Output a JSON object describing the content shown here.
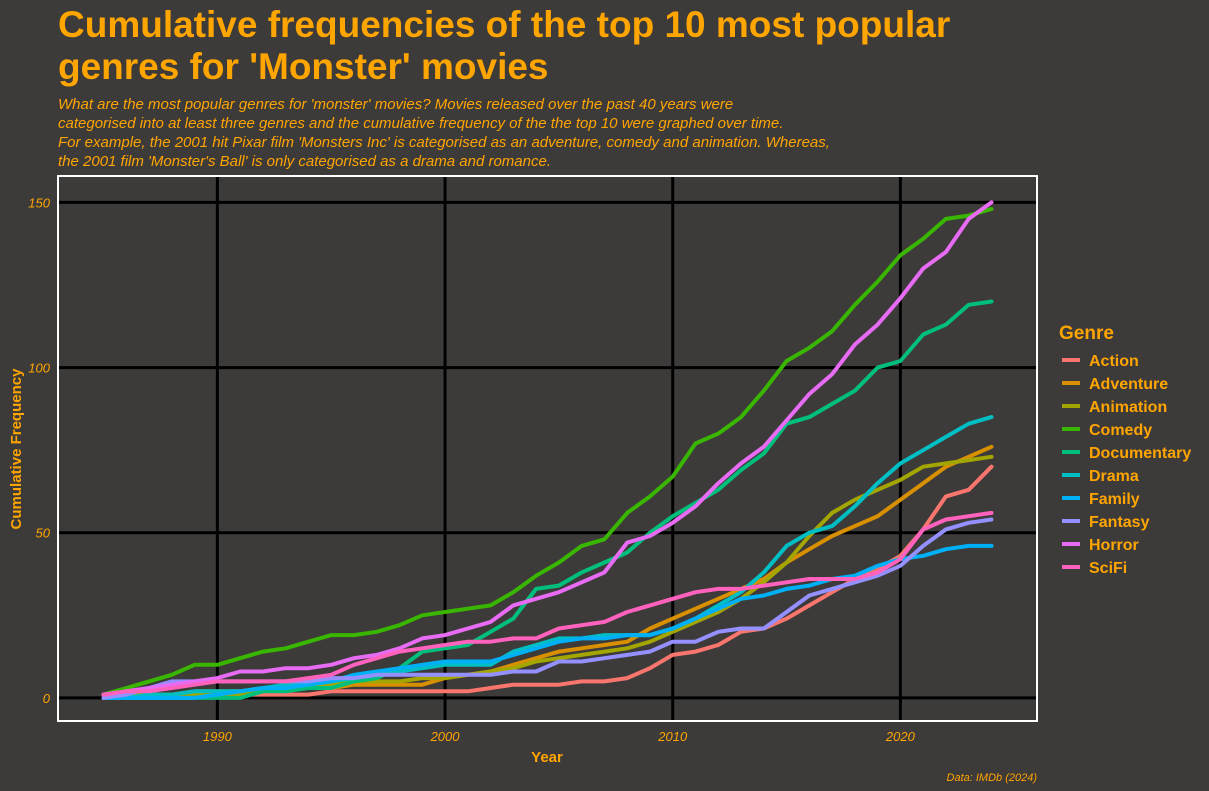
{
  "header": {
    "title_line1": "Cumulative frequencies of the top 10 most popular",
    "title_line2": "genres for 'Monster' movies",
    "subtitle_lines": [
      "What are the most popular genres for 'monster' movies? Movies released over the past 40 years were",
      "categorised into at least three genres and the cumulative frequency of the the top 10 were graphed over time.",
      "For example, the 2001 hit Pixar film 'Monsters Inc' is categorised as an adventure, comedy and animation. Whereas,",
      "the 2001 film 'Monster's Ball' is only categorised as a drama and romance."
    ]
  },
  "caption": "Data: IMDb (2024)",
  "colors": {
    "background": "#3d3a3a",
    "text": "#ffa500",
    "grid": "#000000",
    "panel_border": "#ffffff"
  },
  "chart_data": {
    "type": "line",
    "title": "Cumulative frequencies of the top 10 most popular genres for 'Monster' movies",
    "xlabel": "Year",
    "ylabel": "Cumulative Frequency",
    "xlim": [
      1983,
      2026
    ],
    "ylim": [
      -7,
      158
    ],
    "x_ticks": [
      1990,
      2000,
      2010,
      2020
    ],
    "y_ticks": [
      0,
      50,
      100,
      150
    ],
    "grid": true,
    "legend_title": "Genre",
    "legend_position": "right",
    "x": [
      1985,
      1986,
      1987,
      1988,
      1989,
      1990,
      1991,
      1992,
      1993,
      1994,
      1995,
      1996,
      1997,
      1998,
      1999,
      2000,
      2001,
      2002,
      2003,
      2004,
      2005,
      2006,
      2007,
      2008,
      2009,
      2010,
      2011,
      2012,
      2013,
      2014,
      2015,
      2016,
      2017,
      2018,
      2019,
      2020,
      2021,
      2022,
      2023,
      2024
    ],
    "series": [
      {
        "name": "Action",
        "color": "#f8766d",
        "values": [
          1,
          1,
          1,
          1,
          1,
          1,
          1,
          1,
          1,
          1,
          2,
          2,
          2,
          2,
          2,
          2,
          2,
          3,
          4,
          4,
          4,
          5,
          5,
          6,
          9,
          13,
          14,
          16,
          20,
          21,
          24,
          28,
          32,
          36,
          39,
          43,
          51,
          61,
          63,
          70
        ]
      },
      {
        "name": "Adventure",
        "color": "#d89000",
        "values": [
          0,
          1,
          1,
          1,
          2,
          2,
          2,
          3,
          3,
          3,
          3,
          4,
          4,
          4,
          4,
          6,
          7,
          8,
          10,
          12,
          14,
          15,
          16,
          17,
          21,
          24,
          27,
          30,
          33,
          36,
          41,
          45,
          49,
          52,
          55,
          60,
          65,
          70,
          73,
          76
        ]
      },
      {
        "name": "Animation",
        "color": "#a3a500",
        "values": [
          0,
          1,
          1,
          1,
          1,
          1,
          1,
          2,
          3,
          4,
          4,
          5,
          5,
          5,
          6,
          6,
          7,
          8,
          9,
          11,
          12,
          13,
          14,
          15,
          17,
          20,
          23,
          26,
          30,
          35,
          41,
          49,
          56,
          60,
          63,
          66,
          70,
          71,
          72,
          73
        ]
      },
      {
        "name": "Comedy",
        "color": "#39b600",
        "values": [
          1,
          3,
          5,
          7,
          10,
          10,
          12,
          14,
          15,
          17,
          19,
          19,
          20,
          22,
          25,
          26,
          27,
          28,
          32,
          37,
          41,
          46,
          48,
          56,
          61,
          67,
          77,
          80,
          85,
          93,
          102,
          106,
          111,
          119,
          126,
          134,
          139,
          145,
          146,
          148
        ]
      },
      {
        "name": "Documentary",
        "color": "#00bf7d",
        "values": [
          0,
          0,
          0,
          0,
          0,
          0,
          0,
          2,
          2,
          3,
          3,
          5,
          6,
          9,
          14,
          15,
          16,
          20,
          24,
          33,
          34,
          38,
          41,
          44,
          50,
          55,
          59,
          63,
          69,
          74,
          83,
          85,
          89,
          93,
          100,
          102,
          110,
          113,
          119,
          120
        ]
      },
      {
        "name": "Drama",
        "color": "#00bfc4",
        "values": [
          0,
          0,
          1,
          1,
          2,
          2,
          2,
          3,
          4,
          4,
          5,
          6,
          7,
          8,
          9,
          10,
          10,
          10,
          14,
          16,
          18,
          18,
          19,
          19,
          19,
          21,
          24,
          28,
          32,
          38,
          46,
          50,
          52,
          58,
          65,
          71,
          75,
          79,
          83,
          85
        ]
      },
      {
        "name": "Family",
        "color": "#00b0f6",
        "values": [
          0,
          0,
          0,
          0,
          0,
          1,
          2,
          3,
          3,
          4,
          5,
          7,
          8,
          9,
          10,
          11,
          11,
          11,
          13,
          15,
          17,
          18,
          18,
          19,
          19,
          21,
          24,
          27,
          30,
          31,
          33,
          34,
          36,
          37,
          40,
          42,
          43,
          45,
          46,
          46
        ]
      },
      {
        "name": "Fantasy",
        "color": "#9590ff",
        "values": [
          0,
          1,
          3,
          5,
          5,
          5,
          5,
          5,
          5,
          5,
          6,
          6,
          7,
          7,
          7,
          7,
          7,
          7,
          8,
          8,
          11,
          11,
          12,
          13,
          14,
          17,
          17,
          20,
          21,
          21,
          26,
          31,
          33,
          35,
          37,
          40,
          46,
          51,
          53,
          54
        ]
      },
      {
        "name": "Horror",
        "color": "#e76bf3",
        "values": [
          1,
          2,
          3,
          4,
          5,
          6,
          8,
          8,
          9,
          9,
          10,
          12,
          13,
          15,
          18,
          19,
          21,
          23,
          28,
          30,
          32,
          35,
          38,
          47,
          49,
          53,
          58,
          65,
          71,
          76,
          84,
          92,
          98,
          107,
          113,
          121,
          130,
          135,
          145,
          150
        ]
      },
      {
        "name": "SciFi",
        "color": "#ff62bc",
        "values": [
          1,
          2,
          2,
          3,
          4,
          5,
          5,
          5,
          5,
          6,
          7,
          10,
          12,
          14,
          15,
          16,
          17,
          17,
          18,
          18,
          21,
          22,
          23,
          26,
          28,
          30,
          32,
          33,
          33,
          34,
          35,
          36,
          36,
          36,
          38,
          42,
          51,
          54,
          55,
          56
        ]
      }
    ]
  }
}
